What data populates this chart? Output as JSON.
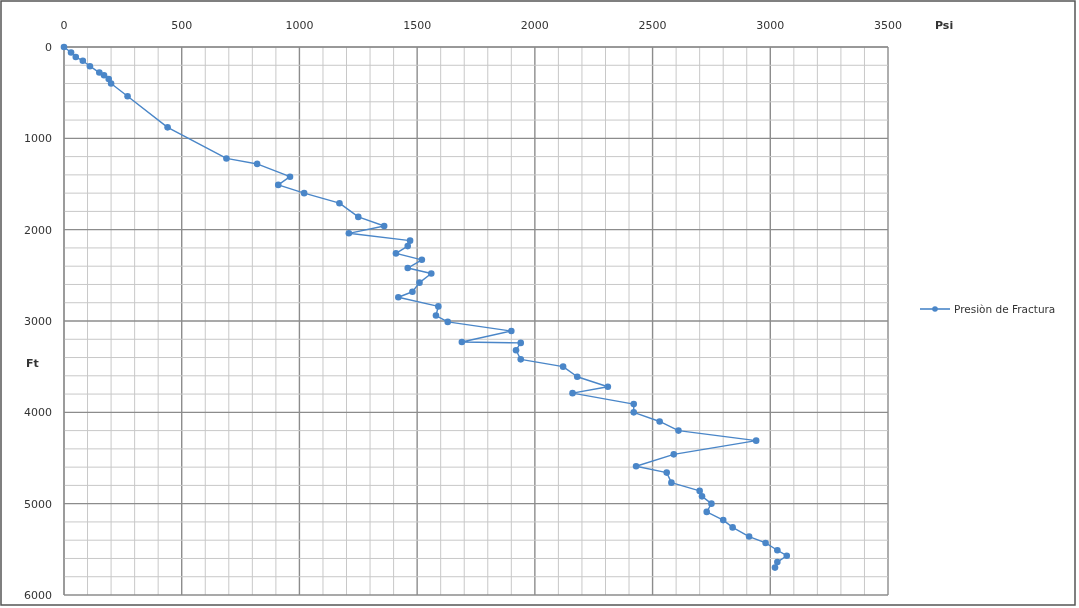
{
  "chart_data": {
    "type": "line",
    "xlabel": "Psi",
    "ylabel": "Ft",
    "xlim": [
      0,
      3500
    ],
    "ylim": [
      6000,
      0
    ],
    "xticks": [
      0,
      {
        "value": 100,
        "label": null
      },
      {
        "value": 200,
        "label": null
      },
      {
        "value": 300,
        "label": null
      },
      {
        "value": 400,
        "label": null
      },
      500,
      {
        "value": 600,
        "label": null
      },
      {
        "value": 700,
        "label": null
      },
      {
        "value": 800,
        "label": null
      },
      {
        "value": 900,
        "label": null
      },
      1000,
      {
        "value": 1100,
        "label": null
      },
      {
        "value": 1200,
        "label": null
      },
      {
        "value": 1300,
        "label": null
      },
      {
        "value": 1400,
        "label": null
      },
      1500,
      {
        "value": 1600,
        "label": null
      },
      {
        "value": 1700,
        "label": null
      },
      {
        "value": 1800,
        "label": null
      },
      {
        "value": 1900,
        "label": null
      },
      2000,
      {
        "value": 2100,
        "label": null
      },
      {
        "value": 2200,
        "label": null
      },
      {
        "value": 2300,
        "label": null
      },
      {
        "value": 2400,
        "label": null
      },
      2500,
      {
        "value": 2600,
        "label": null
      },
      {
        "value": 2700,
        "label": null
      },
      {
        "value": 2800,
        "label": null
      },
      {
        "value": 2900,
        "label": null
      },
      3000,
      {
        "value": 3100,
        "label": null
      },
      {
        "value": 3200,
        "label": null
      },
      {
        "value": 3300,
        "label": null
      },
      {
        "value": 3400,
        "label": null
      },
      3500
    ],
    "yticks": [
      0,
      {
        "value": 200,
        "label": null
      },
      {
        "value": 400,
        "label": null
      },
      {
        "value": 600,
        "label": null
      },
      {
        "value": 800,
        "label": null
      },
      1000,
      {
        "value": 1200,
        "label": null
      },
      {
        "value": 1400,
        "label": null
      },
      {
        "value": 1600,
        "label": null
      },
      {
        "value": 1800,
        "label": null
      },
      2000,
      {
        "value": 2200,
        "label": null
      },
      {
        "value": 2400,
        "label": null
      },
      {
        "value": 2600,
        "label": null
      },
      {
        "value": 2800,
        "label": null
      },
      3000,
      {
        "value": 3200,
        "label": null
      },
      {
        "value": 3400,
        "label": null
      },
      {
        "value": 3600,
        "label": null
      },
      {
        "value": 3800,
        "label": null
      },
      4000,
      {
        "value": 4200,
        "label": null
      },
      {
        "value": 4400,
        "label": null
      },
      {
        "value": 4600,
        "label": null
      },
      {
        "value": 4800,
        "label": null
      },
      5000,
      {
        "value": 5200,
        "label": null
      },
      {
        "value": 5400,
        "label": null
      },
      {
        "value": 5600,
        "label": null
      },
      {
        "value": 5800,
        "label": null
      },
      6000
    ],
    "grid": true,
    "legend": "right",
    "marker": "circle",
    "line_style": "solid",
    "series": [
      {
        "name": "Presiòn de Fractura",
        "color": "#4a86c8",
        "x": [
          0,
          30,
          50,
          80,
          110,
          150,
          170,
          190,
          200,
          270,
          440,
          690,
          820,
          960,
          910,
          1020,
          1170,
          1250,
          1360,
          1210,
          1470,
          1460,
          1410,
          1520,
          1460,
          1560,
          1510,
          1480,
          1420,
          1590,
          1580,
          1630,
          1900,
          1690,
          1940,
          1920,
          1940,
          2120,
          2180,
          2310,
          2160,
          2420,
          2420,
          2530,
          2610,
          2940,
          2590,
          2430,
          2560,
          2580,
          2700,
          2710,
          2750,
          2730,
          2800,
          2840,
          2910,
          2980,
          3030,
          3070,
          3030,
          3020
        ],
        "values": [
          0,
          60,
          110,
          150,
          210,
          280,
          310,
          350,
          400,
          540,
          880,
          1220,
          1280,
          1420,
          1510,
          1600,
          1710,
          1860,
          1960,
          2040,
          2120,
          2180,
          2260,
          2330,
          2420,
          2480,
          2580,
          2680,
          2740,
          2840,
          2940,
          3010,
          3110,
          3230,
          3240,
          3320,
          3420,
          3500,
          3610,
          3720,
          3790,
          3910,
          4000,
          4100,
          4200,
          4310,
          4460,
          4590,
          4660,
          4770,
          4860,
          4920,
          5000,
          5090,
          5180,
          5260,
          5360,
          5430,
          5510,
          5570,
          5640,
          5700
        ]
      }
    ]
  }
}
